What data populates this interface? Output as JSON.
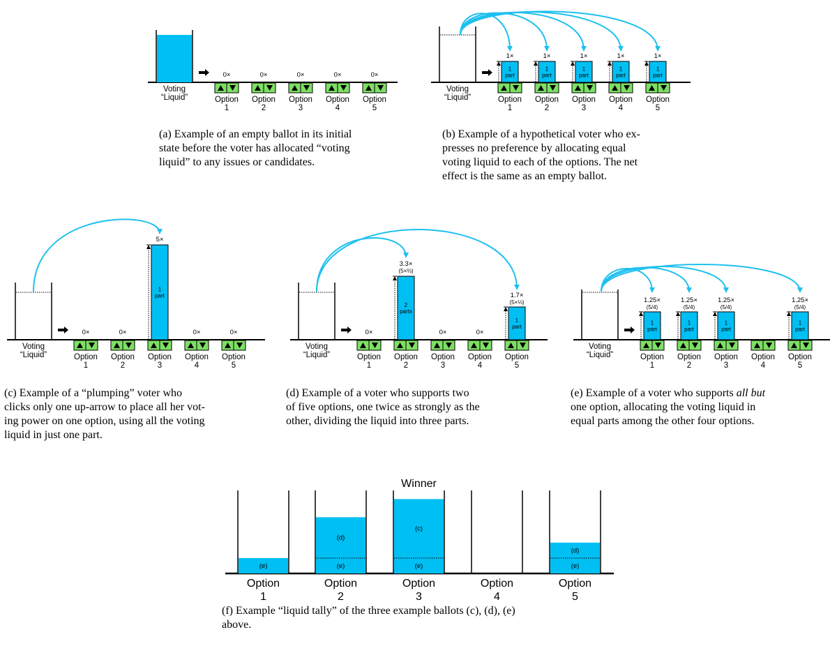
{
  "colors": {
    "liquid": "#00bff3",
    "button": "#7ddf64",
    "arrow": "#1ec0ef",
    "ink": "#000000"
  },
  "icons": [
    "up-arrow-icon",
    "down-arrow-icon",
    "right-arrow-icon",
    "curved-arrow-icon"
  ],
  "common": {
    "source_label_line1": "Voting",
    "source_label_line2": "“Liquid”",
    "option_word": "Option",
    "option_numbers": [
      "1",
      "2",
      "3",
      "4",
      "5"
    ]
  },
  "panels": {
    "a": {
      "multipliers": [
        "0×",
        "0×",
        "0×",
        "0×",
        "0×"
      ],
      "caption": [
        "(a) Example of an empty ballot in its initial",
        "state before the voter has allocated “voting",
        "liquid” to any issues or candidates."
      ]
    },
    "b": {
      "multipliers": [
        "1×",
        "1×",
        "1×",
        "1×",
        "1×"
      ],
      "parts": [
        [
          "1",
          "part"
        ],
        [
          "1",
          "part"
        ],
        [
          "1",
          "part"
        ],
        [
          "1",
          "part"
        ],
        [
          "1",
          "part"
        ]
      ],
      "caption": [
        "(b) Example of a hypothetical voter who ex-",
        "presses no preference by allocating equal",
        "voting liquid to each of the options. The net",
        "effect is the same as an empty ballot."
      ]
    },
    "c": {
      "multipliers": [
        "0×",
        "0×",
        "5×",
        "0×",
        "0×"
      ],
      "parts": [
        "1",
        "part"
      ],
      "caption": [
        "(c) Example of a “plumping” voter who",
        "clicks only one up-arrow to place all her vot-",
        "ing power on one option, using all the voting",
        "liquid in just one part."
      ]
    },
    "d": {
      "multipliers": [
        "0×",
        "3.3×",
        "0×",
        "0×",
        "1.7×"
      ],
      "sub": [
        "",
        "(5×⅔)",
        "",
        "",
        "(5×⅓)"
      ],
      "parts_2": [
        "2",
        "parts"
      ],
      "parts_5": [
        "1",
        "part"
      ],
      "caption": [
        "(d) Example of a voter who supports two",
        "of five options, one twice as strongly as the",
        "other, dividing the liquid into three parts."
      ]
    },
    "e": {
      "multipliers": [
        "1.25×",
        "1.25×",
        "1.25×",
        "",
        "1.25×"
      ],
      "sub": [
        "(5/4)",
        "(5/4)",
        "(5/4)",
        "",
        "(5/4)"
      ],
      "parts": [
        "1",
        "part"
      ],
      "caption_pre": "(e) Example of a voter who supports ",
      "caption_it": "all but",
      "caption_rest": [
        "one option, allocating the voting liquid in",
        "equal parts among the other four options."
      ]
    },
    "f": {
      "winner": "Winner",
      "tally_levels": [
        0.17,
        0.62,
        0.82,
        0.0,
        0.34
      ],
      "segments": {
        "o1": [
          "(e)"
        ],
        "o2": [
          "(e)",
          "(d)"
        ],
        "o3": [
          "(e)",
          "(c)"
        ],
        "o5": [
          "(e)",
          "(d)"
        ]
      },
      "caption": [
        "(f) Example “liquid tally” of the three example ballots (c), (d), (e)",
        "above."
      ]
    }
  }
}
